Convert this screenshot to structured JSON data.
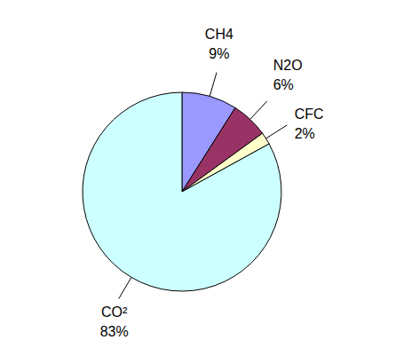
{
  "chart_data": {
    "type": "pie",
    "categories": [
      "CH4",
      "N2O",
      "CFC",
      "CO²"
    ],
    "values": [
      9,
      6,
      2,
      83
    ],
    "value_labels": [
      "9%",
      "6%",
      "2%",
      "83%"
    ],
    "colors": [
      "#9999ff",
      "#993366",
      "#ffffcc",
      "#ccffff"
    ],
    "data_labels": true
  }
}
